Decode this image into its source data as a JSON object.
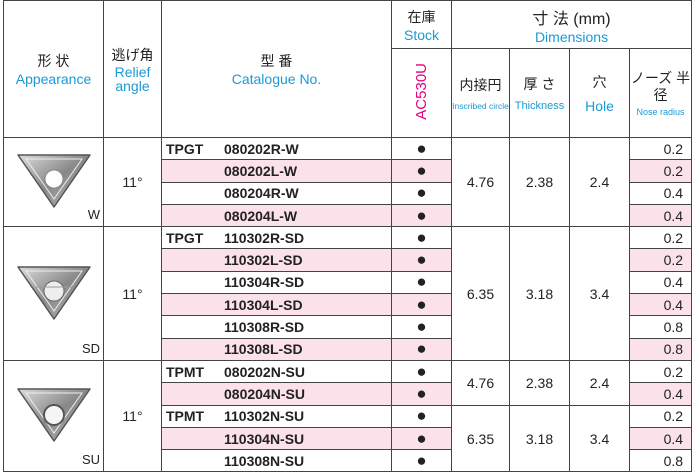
{
  "header": {
    "appearance_jp": "形 状",
    "appearance_en": "Appearance",
    "relief_jp": "逃げ角",
    "relief_en": "Relief angle",
    "catalogue_jp": "型 番",
    "catalogue_en": "Catalogue No.",
    "stock_jp": "在庫",
    "stock_en": "Stock",
    "grade": "AC530U",
    "dimensions_jp": "寸 法 (mm)",
    "dimensions_en": "Dimensions",
    "inscribed_jp": "内接円",
    "inscribed_en": "Inscribed circle",
    "thickness_jp": "厚 さ",
    "thickness_en": "Thickness",
    "hole_jp": "穴",
    "hole_en": "Hole",
    "nose_jp": "ノーズ 半 径",
    "nose_en": "Nose radius"
  },
  "groups": [
    {
      "shape_label": "W",
      "relief": "11°",
      "subgroups": [
        {
          "inscribed": 4.76,
          "thickness": 2.38,
          "hole": 2.4,
          "rows": [
            {
              "prefix": "TPGT",
              "catalogue": "080202R-W",
              "stock": "●",
              "nose": 0.2
            },
            {
              "catalogue": "080202L-W",
              "stock": "●",
              "nose": 0.2
            },
            {
              "catalogue": "080204R-W",
              "stock": "●",
              "nose": 0.4
            },
            {
              "catalogue": "080204L-W",
              "stock": "●",
              "nose": 0.4
            }
          ]
        }
      ]
    },
    {
      "shape_label": "SD",
      "relief": "11°",
      "subgroups": [
        {
          "inscribed": 6.35,
          "thickness": 3.18,
          "hole": 3.4,
          "rows": [
            {
              "prefix": "TPGT",
              "catalogue": "110302R-SD",
              "stock": "●",
              "nose": 0.2
            },
            {
              "catalogue": "110302L-SD",
              "stock": "●",
              "nose": 0.2
            },
            {
              "catalogue": "110304R-SD",
              "stock": "●",
              "nose": 0.4
            },
            {
              "catalogue": "110304L-SD",
              "stock": "●",
              "nose": 0.4
            },
            {
              "catalogue": "110308R-SD",
              "stock": "●",
              "nose": 0.8
            },
            {
              "catalogue": "110308L-SD",
              "stock": "●",
              "nose": 0.8
            }
          ]
        }
      ]
    },
    {
      "shape_label": "SU",
      "relief": "11°",
      "subgroups": [
        {
          "inscribed": 4.76,
          "thickness": 2.38,
          "hole": 2.4,
          "rows": [
            {
              "prefix": "TPMT",
              "catalogue": "080202N-SU",
              "stock": "●",
              "nose": 0.2
            },
            {
              "catalogue": "080204N-SU",
              "stock": "●",
              "nose": 0.4
            }
          ]
        },
        {
          "inscribed": 6.35,
          "thickness": 3.18,
          "hole": 3.4,
          "rows": [
            {
              "prefix": "TPMT",
              "catalogue": "110302N-SU",
              "stock": "●",
              "nose": 0.2
            },
            {
              "catalogue": "110304N-SU",
              "stock": "●",
              "nose": 0.4
            },
            {
              "catalogue": "110308N-SU",
              "stock": "●",
              "nose": 0.8
            }
          ]
        }
      ]
    }
  ]
}
